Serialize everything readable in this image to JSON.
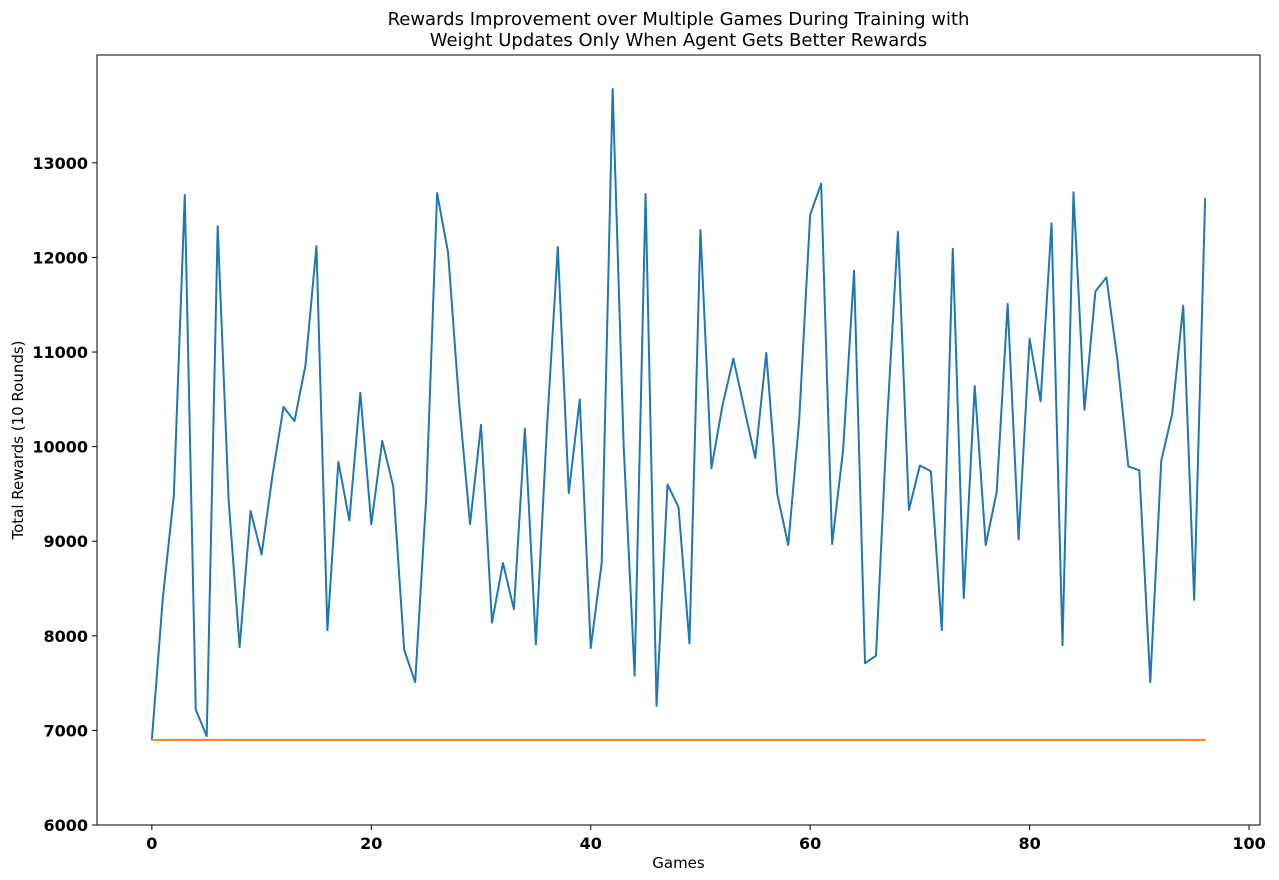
{
  "chart_data": {
    "type": "line",
    "title": "Rewards Improvement over Multiple Games During Training with\nWeight Updates Only When Agent Gets Better Rewards",
    "xlabel": "Games",
    "ylabel": "Total Rewards (10 Rounds)",
    "xlim": [
      -5,
      101
    ],
    "ylim": [
      6000,
      14140
    ],
    "xticks": [
      0,
      20,
      40,
      60,
      80,
      100
    ],
    "yticks": [
      6000,
      7000,
      8000,
      9000,
      10000,
      11000,
      12000,
      13000
    ],
    "grid": false,
    "legend": "none",
    "series": [
      {
        "color": "#1f77b4",
        "x": [
          0,
          1,
          2,
          3,
          4,
          5,
          6,
          7,
          8,
          9,
          10,
          11,
          12,
          13,
          14,
          15,
          16,
          17,
          18,
          19,
          20,
          21,
          22,
          23,
          24,
          25,
          26,
          27,
          28,
          29,
          30,
          31,
          32,
          33,
          34,
          35,
          36,
          37,
          38,
          39,
          40,
          41,
          42,
          43,
          44,
          45,
          46,
          47,
          48,
          49,
          50,
          51,
          52,
          53,
          54,
          55,
          56,
          57,
          58,
          59,
          60,
          61,
          62,
          63,
          64,
          65,
          66,
          67,
          68,
          69,
          70,
          71,
          72,
          73,
          74,
          75,
          76,
          77,
          78,
          79,
          80,
          81,
          82,
          83,
          84,
          85,
          86,
          87,
          88,
          89,
          90,
          91,
          92,
          93,
          94,
          95,
          96
        ],
        "y": [
          6900,
          8400,
          9480,
          12660,
          7220,
          6940,
          12330,
          9430,
          7880,
          9320,
          8860,
          9700,
          10420,
          10270,
          10860,
          12120,
          8060,
          9840,
          9220,
          10570,
          9180,
          10060,
          9580,
          7850,
          7510,
          9450,
          12680,
          12050,
          10470,
          9180,
          10230,
          8140,
          8770,
          8280,
          10190,
          7910,
          10180,
          12110,
          9510,
          10500,
          7870,
          8770,
          13780,
          10010,
          7580,
          12670,
          7260,
          9600,
          9360,
          7920,
          12290,
          9770,
          10430,
          10930,
          10400,
          9880,
          10990,
          9500,
          8960,
          10280,
          12450,
          12780,
          8970,
          9960,
          11860,
          7710,
          7790,
          10240,
          12270,
          9330,
          9800,
          9740,
          8060,
          12090,
          8400,
          10640,
          8960,
          9520,
          11510,
          9020,
          11140,
          10480,
          12360,
          7900,
          12690,
          10390,
          11640,
          11790,
          10920,
          9790,
          9750,
          7510,
          9850,
          10350,
          11490,
          8380,
          12620
        ]
      },
      {
        "color": "#ff7f0e",
        "x": [
          0,
          96
        ],
        "y": [
          6900,
          6900
        ]
      }
    ]
  }
}
